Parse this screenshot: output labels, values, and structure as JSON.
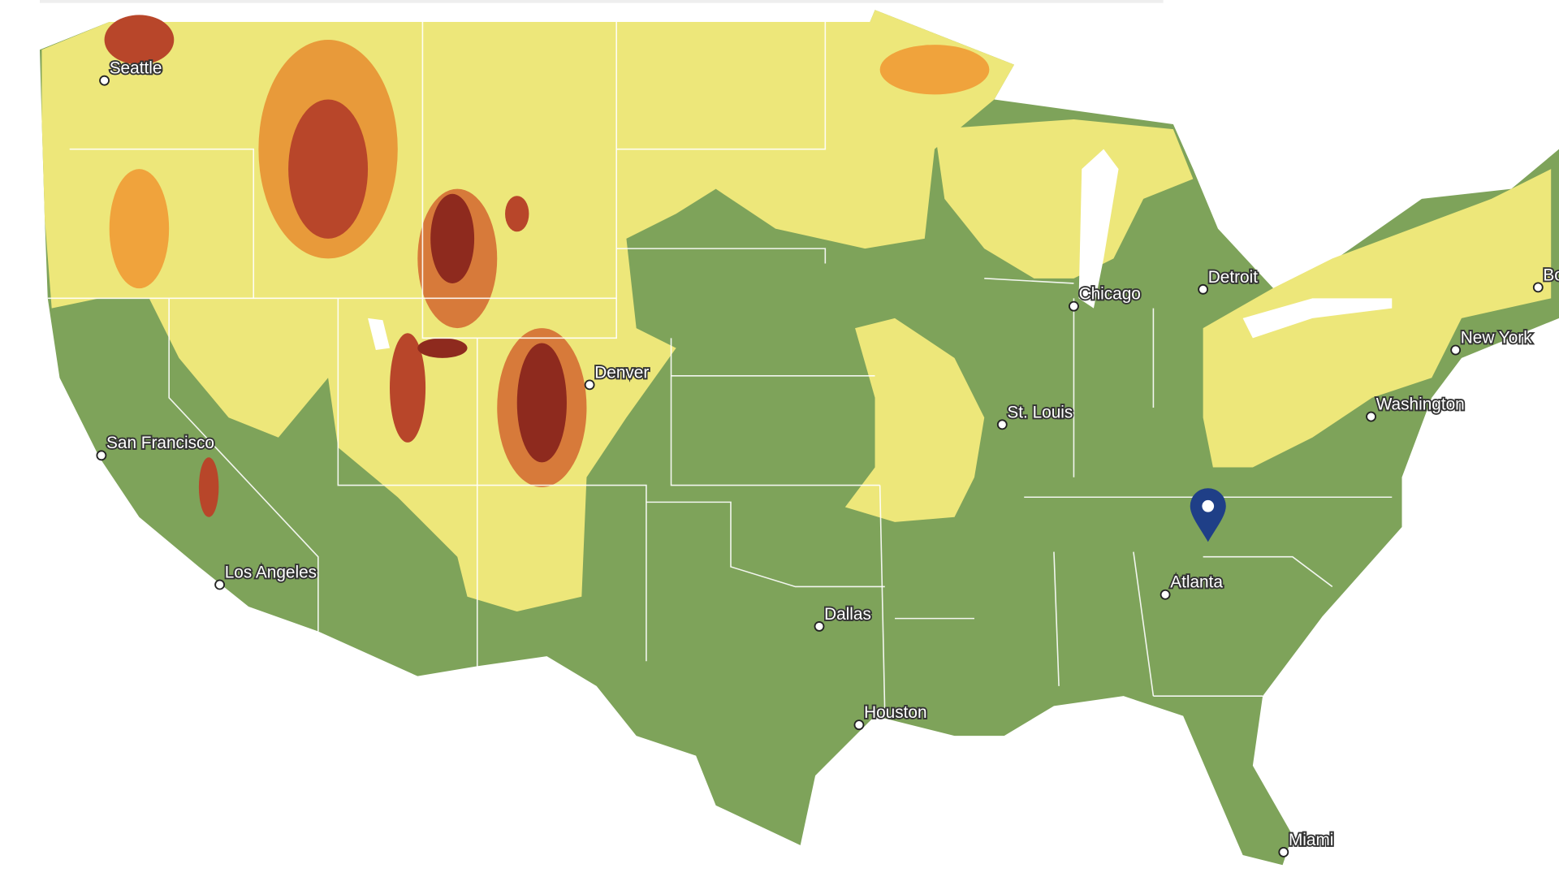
{
  "cities": [
    {
      "label": "Seattle"
    },
    {
      "label": "San Francisco"
    },
    {
      "label": "Los Angeles"
    },
    {
      "label": "Denver"
    },
    {
      "label": "Dallas"
    },
    {
      "label": "Houston"
    },
    {
      "label": "St. Louis"
    },
    {
      "label": "Chicago"
    },
    {
      "label": "Detroit"
    },
    {
      "label": "New York"
    },
    {
      "label": "Washington"
    },
    {
      "label": "Atlanta"
    },
    {
      "label": "Miami"
    },
    {
      "label": "Bo"
    }
  ]
}
